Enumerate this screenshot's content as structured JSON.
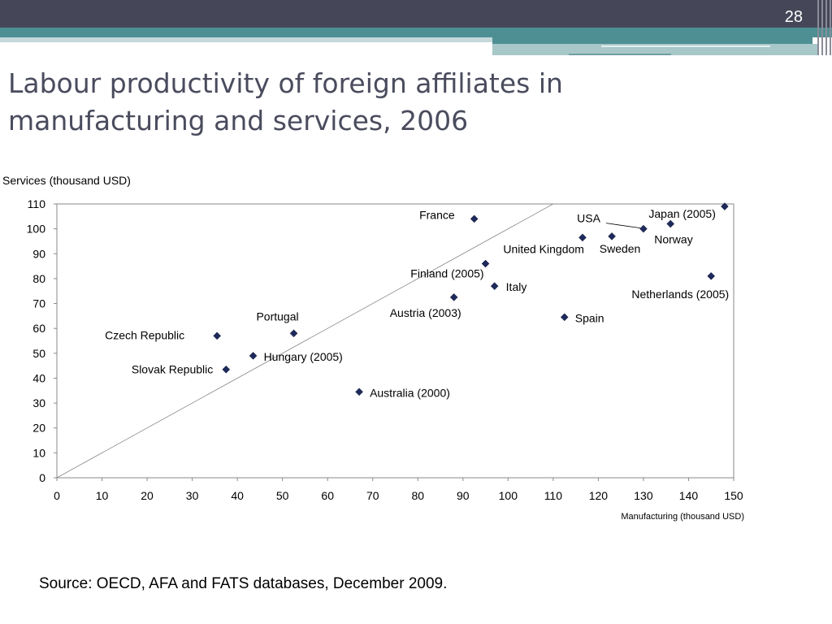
{
  "page_number": "28",
  "title_line1": "Labour productivity of foreign affiliates in",
  "title_line2": "manufacturing and services, 2006",
  "source": "Source: OECD, AFA and FATS databases, December 2009.",
  "colors": {
    "point": "#1f2a5c",
    "header": "#454758",
    "teal": "#4e8f94",
    "title": "#4a4c5e"
  },
  "chart_data": {
    "type": "scatter",
    "ylabel": "Services (thousand USD)",
    "xlabel": "Manufacturing (thousand USD)",
    "xlim": [
      0,
      150
    ],
    "ylim": [
      0,
      110
    ],
    "xticks": [
      0,
      10,
      20,
      30,
      40,
      50,
      60,
      70,
      80,
      90,
      100,
      110,
      120,
      130,
      140,
      150
    ],
    "yticks": [
      0,
      10,
      20,
      30,
      40,
      50,
      60,
      70,
      80,
      90,
      100,
      110
    ],
    "grid": false,
    "reference_line": {
      "from": [
        0,
        0
      ],
      "to": [
        110,
        110
      ]
    },
    "points": [
      {
        "label": "Czech Republic",
        "x": 35.5,
        "y": 57
      },
      {
        "label": "Slovak Republic",
        "x": 37.5,
        "y": 43.5
      },
      {
        "label": "Hungary (2005)",
        "x": 43.5,
        "y": 49
      },
      {
        "label": "Portugal",
        "x": 52.5,
        "y": 58
      },
      {
        "label": "Australia (2000)",
        "x": 67,
        "y": 34.5
      },
      {
        "label": "Austria (2003)",
        "x": 88,
        "y": 72.5
      },
      {
        "label": "France",
        "x": 92.5,
        "y": 104
      },
      {
        "label": "Finland (2005)",
        "x": 95,
        "y": 86
      },
      {
        "label": "Italy",
        "x": 97,
        "y": 77
      },
      {
        "label": "Spain",
        "x": 112.5,
        "y": 64.5
      },
      {
        "label": "United Kingdom",
        "x": 116.5,
        "y": 96.5
      },
      {
        "label": "Sweden",
        "x": 123,
        "y": 97
      },
      {
        "label": "USA",
        "x": 130,
        "y": 100
      },
      {
        "label": "Norway",
        "x": 136,
        "y": 102
      },
      {
        "label": "Netherlands (2005)",
        "x": 145,
        "y": 81
      },
      {
        "label": "Japan (2005)",
        "x": 148,
        "y": 109
      }
    ]
  }
}
